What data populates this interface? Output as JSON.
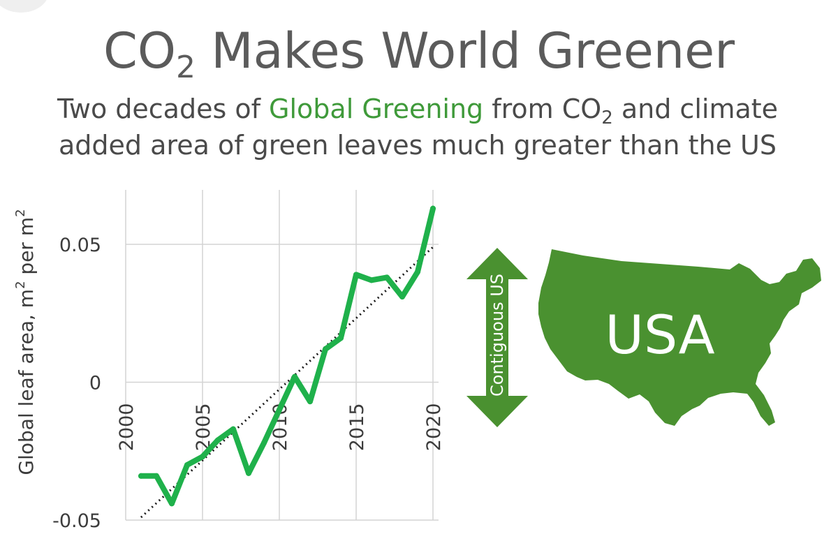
{
  "header": {
    "title_pre": "CO",
    "title_sub": "2",
    "title_post": " Makes World Greener",
    "subtitle_line1_pre": "Two decades of ",
    "subtitle_line1_green": "Global Greening",
    "subtitle_line1_post1": " from CO",
    "subtitle_line1_sub": "2",
    "subtitle_line1_post2": " and climate",
    "subtitle_line2": "added area of green leaves much greater than the US"
  },
  "colors": {
    "series_line": "#1fb14b",
    "trend_line": "#1a1a1a",
    "grid": "#d4d4d4",
    "usa_fill": "#4a9130",
    "arrow_fill": "#4a9130",
    "green_text": "#3f9a3a"
  },
  "chart_data": {
    "type": "line",
    "ylabel_text": "Global leaf area, m",
    "ylabel_sup1": "2",
    "ylabel_mid": " per m",
    "ylabel_sup2": "2",
    "xlim": [
      2000,
      2020
    ],
    "ylim": [
      -0.05,
      0.05
    ],
    "xticks": [
      2000,
      2005,
      2010,
      2015,
      2020
    ],
    "xtick_labels": [
      "2000",
      "2005",
      "2010",
      "2015",
      "2020"
    ],
    "yticks": [
      0.05,
      0,
      -0.05
    ],
    "ytick_labels": [
      "0.05",
      "0",
      "-0.05"
    ],
    "grid": true,
    "series": [
      {
        "x": [
          2001,
          2002,
          2003,
          2004,
          2005,
          2006,
          2007,
          2008,
          2009,
          2010,
          2011,
          2012,
          2013,
          2014,
          2015,
          2016,
          2017,
          2018,
          2019,
          2020
        ],
        "values": [
          -0.034,
          -0.034,
          -0.044,
          -0.03,
          -0.027,
          -0.021,
          -0.017,
          -0.033,
          -0.022,
          -0.01,
          0.002,
          -0.007,
          0.012,
          0.016,
          0.039,
          0.037,
          0.038,
          0.031,
          0.04,
          0.063
        ]
      }
    ],
    "trend": {
      "x": [
        2001,
        2020
      ],
      "values": [
        -0.049,
        0.049
      ]
    }
  },
  "map": {
    "country_label": "USA",
    "arrow_label": "Contiguous US"
  }
}
